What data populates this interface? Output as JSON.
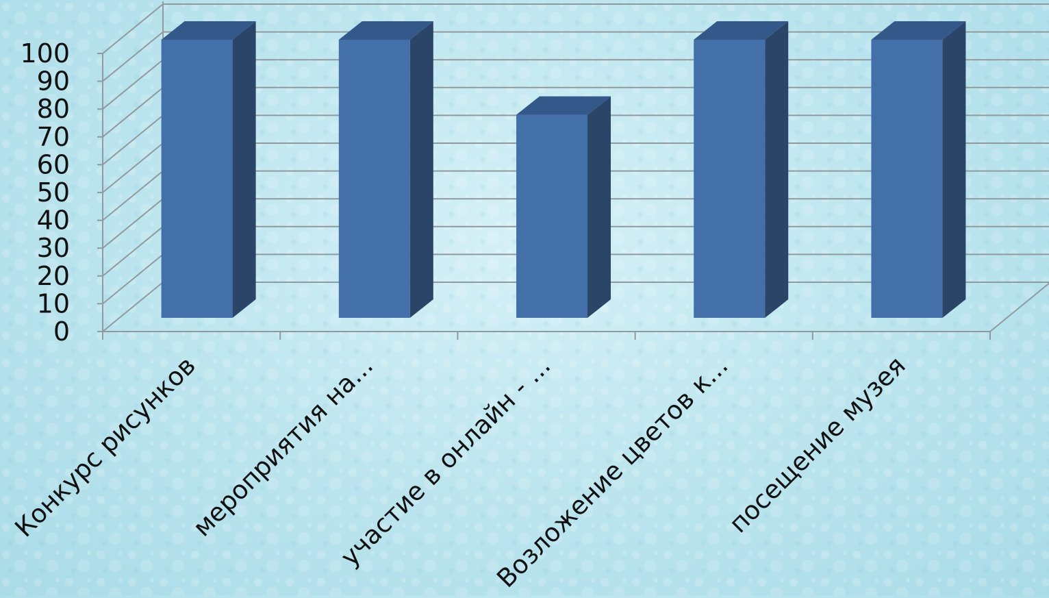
{
  "chart_data": {
    "type": "bar",
    "view": "3d-clustered-column",
    "categories": [
      "Конкурс рисунков",
      "мероприятия на...",
      "участие в онлайн - ...",
      "Возложение цветов к...",
      "посещение музея"
    ],
    "series": [
      {
        "values": [
          100,
          100,
          73,
          100,
          100
        ]
      }
    ],
    "yticks": [
      "0",
      "10",
      "20",
      "30",
      "40",
      "50",
      "60",
      "70",
      "80",
      "90",
      "100"
    ],
    "ylim": [
      0,
      100
    ],
    "title": "",
    "xlabel": "",
    "ylabel": "",
    "grid": true,
    "legend": "none",
    "colors": {
      "bar_front": "#4470aa",
      "bar_side": "#2b4569",
      "bar_top": "#34588a",
      "gridline": "#8f9a9e",
      "text": "#111111"
    }
  }
}
